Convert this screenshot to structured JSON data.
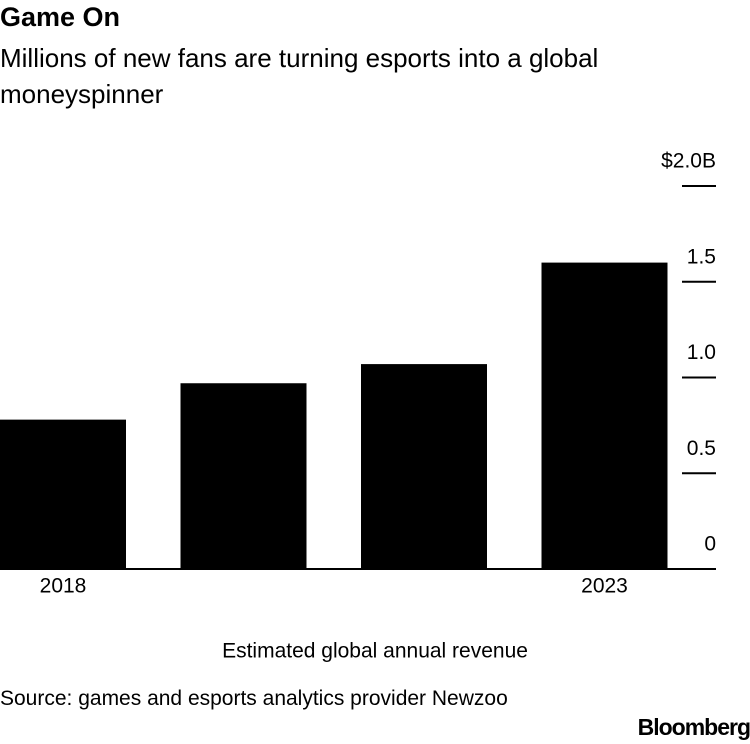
{
  "chart_data": {
    "type": "bar",
    "title": "Game On",
    "subtitle": "Millions of new fans are turning esports into a global moneyspinner",
    "categories": [
      "2018",
      null,
      null,
      "2023"
    ],
    "values": [
      0.78,
      0.97,
      1.07,
      1.6
    ],
    "color": "#000000",
    "ylim": [
      0,
      2
    ],
    "yticks": [
      0,
      0.5,
      {
        "value": 1,
        "label": "1.0"
      },
      1.5,
      {
        "value": 2,
        "label": "$2.0B"
      }
    ],
    "xlabel": "Estimated global annual revenue",
    "source": "Source: games and esports analytics provider Newzoo",
    "brand": "Bloomberg"
  }
}
